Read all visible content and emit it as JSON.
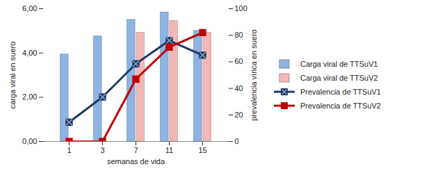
{
  "chart_data": {
    "type": "bar",
    "x_label": "semanas de vida",
    "y_label": "carga viral en suero",
    "y2_label": "prevalencia vírica en suero",
    "categories": [
      1,
      3,
      7,
      11,
      15
    ],
    "ylim": [
      0,
      6
    ],
    "yticks": [
      {
        "value": 0,
        "label": "0,00"
      },
      {
        "value": 2,
        "label": "2,00"
      },
      {
        "value": 4,
        "label": "4,00"
      },
      {
        "value": 6,
        "label": "6,00"
      }
    ],
    "y2lim": [
      0,
      100
    ],
    "y2ticks": [
      0,
      20,
      40,
      60,
      80,
      100
    ],
    "legend": "right",
    "series": [
      {
        "name": "Carga viral de TTSuV1",
        "type": "bar",
        "color": "#8db4e2",
        "values": [
          3.93,
          4.75,
          5.5,
          5.83,
          5.0
        ]
      },
      {
        "name": "Carga viral de TTSuV2",
        "type": "bar",
        "color": "#f2b8b8",
        "values": [
          null,
          null,
          4.92,
          5.45,
          4.92
        ]
      },
      {
        "name": "Prevalencia de TTSuV1",
        "type": "line",
        "axis": "y2",
        "color": "#1f3864",
        "marker": "square-x",
        "values": [
          14.5,
          33.5,
          58.5,
          76,
          65
        ]
      },
      {
        "name": "Prevalencia de TTSuV2",
        "type": "line",
        "axis": "y2",
        "color": "#c00000",
        "marker": "square",
        "values": [
          0,
          0,
          47,
          71,
          82
        ]
      }
    ]
  }
}
